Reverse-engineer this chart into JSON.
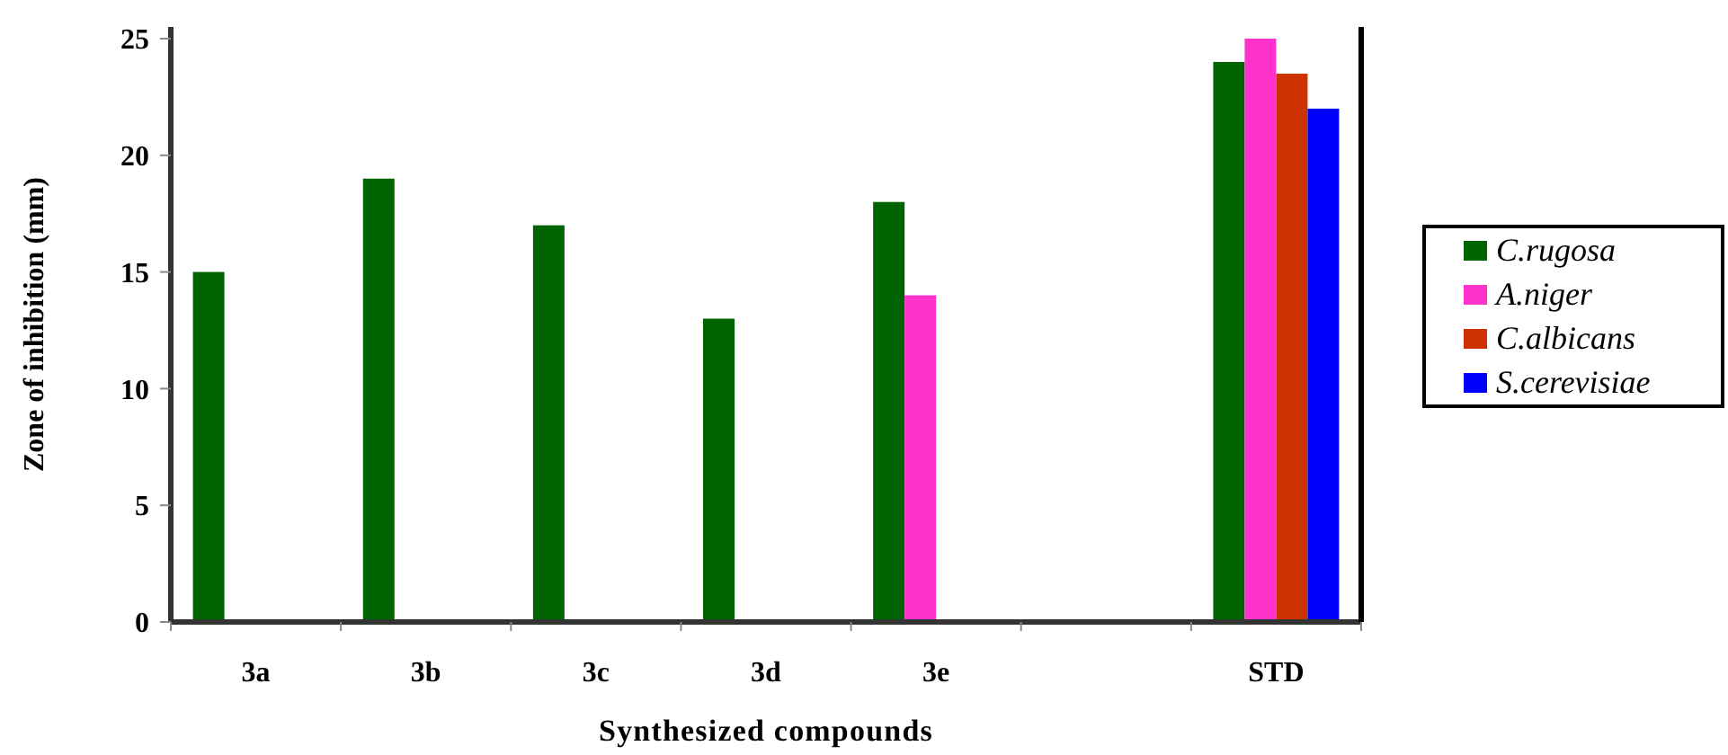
{
  "chart_data": {
    "type": "bar",
    "xlabel": "Synthesized compounds",
    "ylabel": "Zone of inhibition (mm)",
    "categories": [
      "3a",
      "3b",
      "3c",
      "3d",
      "3e",
      null,
      "STD"
    ],
    "series": [
      {
        "name": "C.rugosa",
        "color": "#006400",
        "values": [
          15,
          19,
          17,
          13,
          18,
          null,
          24
        ]
      },
      {
        "name": "A.niger",
        "color": "#ff33cc",
        "values": [
          null,
          null,
          null,
          null,
          14,
          null,
          25
        ]
      },
      {
        "name": "C.albicans",
        "color": "#cc3300",
        "values": [
          null,
          null,
          null,
          null,
          null,
          null,
          23.5
        ]
      },
      {
        "name": "S.cerevisiae",
        "color": "#0000ff",
        "values": [
          null,
          null,
          null,
          null,
          null,
          null,
          22
        ]
      }
    ],
    "ylim": [
      0,
      25.5
    ],
    "yticks": [
      0,
      5,
      10,
      15,
      20,
      25
    ],
    "grid": false,
    "legend": "right"
  }
}
